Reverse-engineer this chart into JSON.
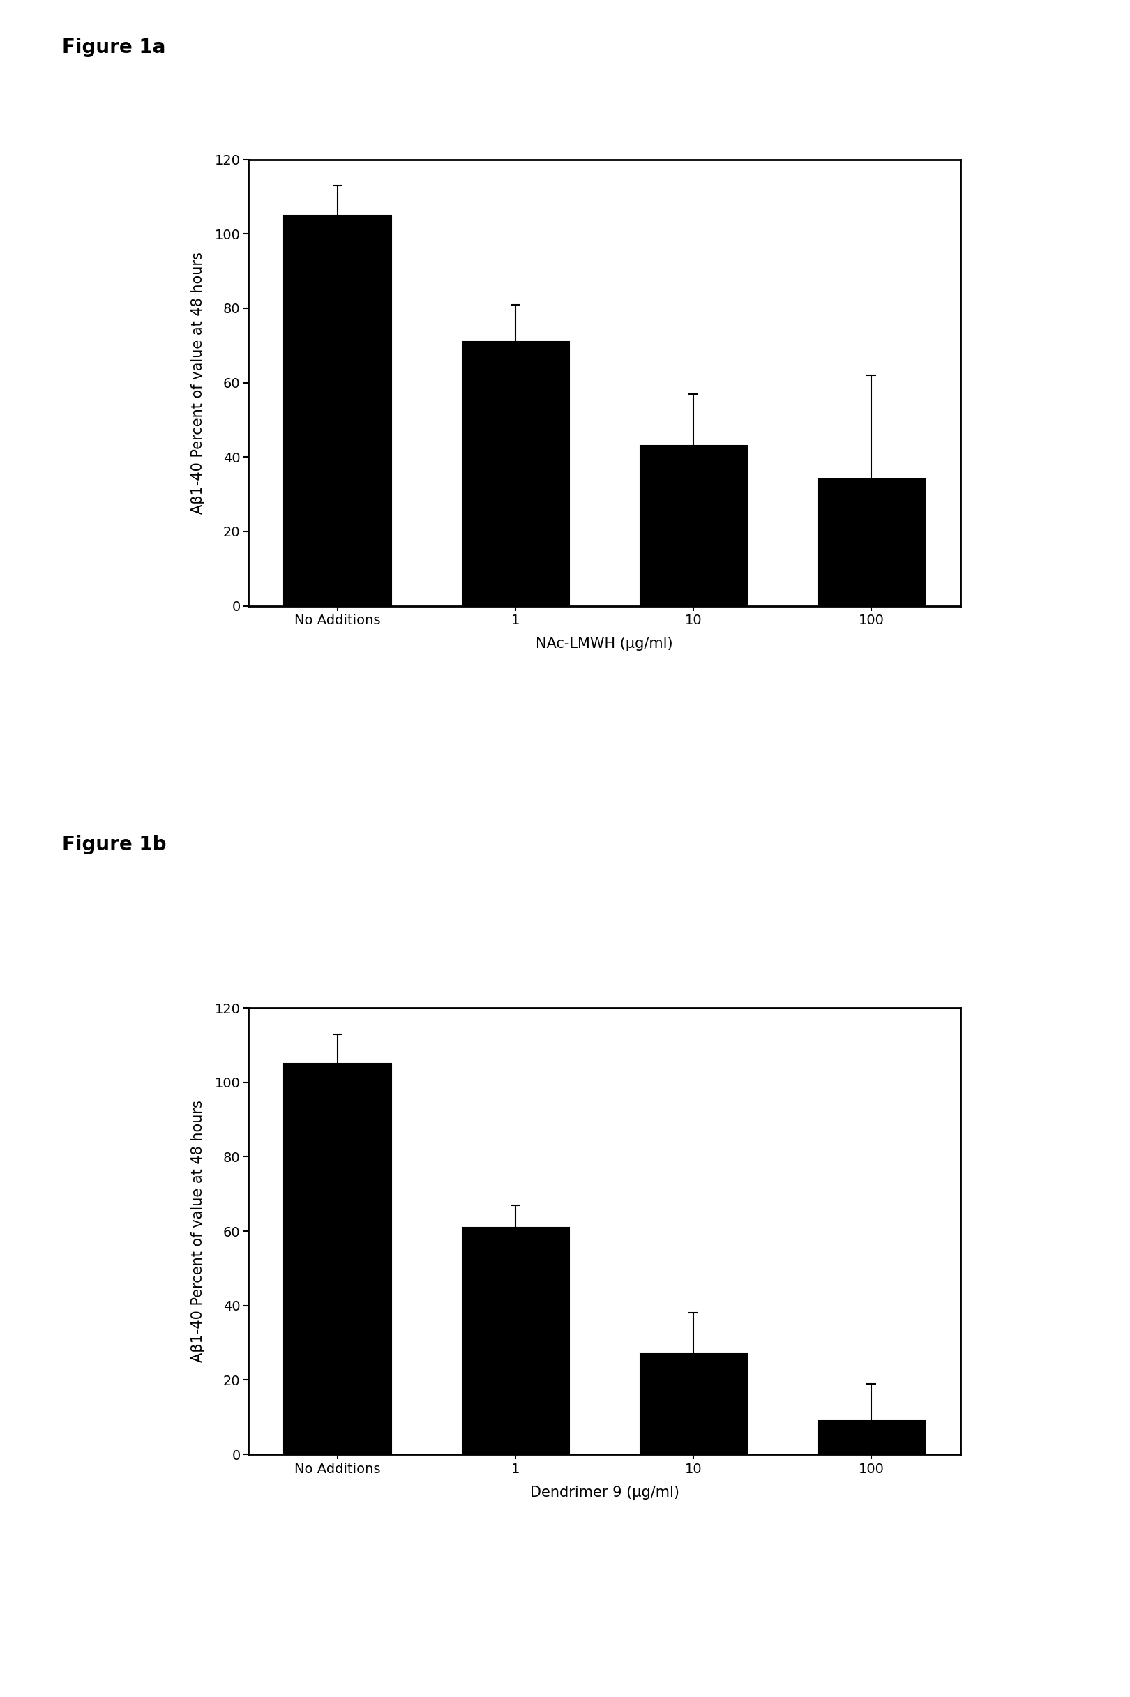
{
  "fig1a": {
    "title": "Figure 1a",
    "categories": [
      "No Additions",
      "1",
      "10",
      "100"
    ],
    "values": [
      105,
      71,
      43,
      34
    ],
    "errors": [
      8,
      10,
      14,
      28
    ],
    "xlabel": "NAc-LMWH (μg/ml)",
    "ylabel": "Aβ1-40 Percent of value at 48 hours",
    "ylim": [
      0,
      120
    ],
    "yticks": [
      0,
      20,
      40,
      60,
      80,
      100,
      120
    ]
  },
  "fig1b": {
    "title": "Figure 1b",
    "categories": [
      "No Additions",
      "1",
      "10",
      "100"
    ],
    "values": [
      105,
      61,
      27,
      9
    ],
    "errors": [
      8,
      6,
      11,
      10
    ],
    "xlabel": "Dendrimer 9 (μg/ml)",
    "ylabel": "Aβ1-40 Percent of value at 48 hours",
    "ylim": [
      0,
      120
    ],
    "yticks": [
      0,
      20,
      40,
      60,
      80,
      100,
      120
    ]
  },
  "bar_color": "#000000",
  "bar_edgecolor": "#000000",
  "background_color": "#ffffff",
  "title_fontsize": 20,
  "tick_fontsize": 14,
  "label_fontsize": 15
}
